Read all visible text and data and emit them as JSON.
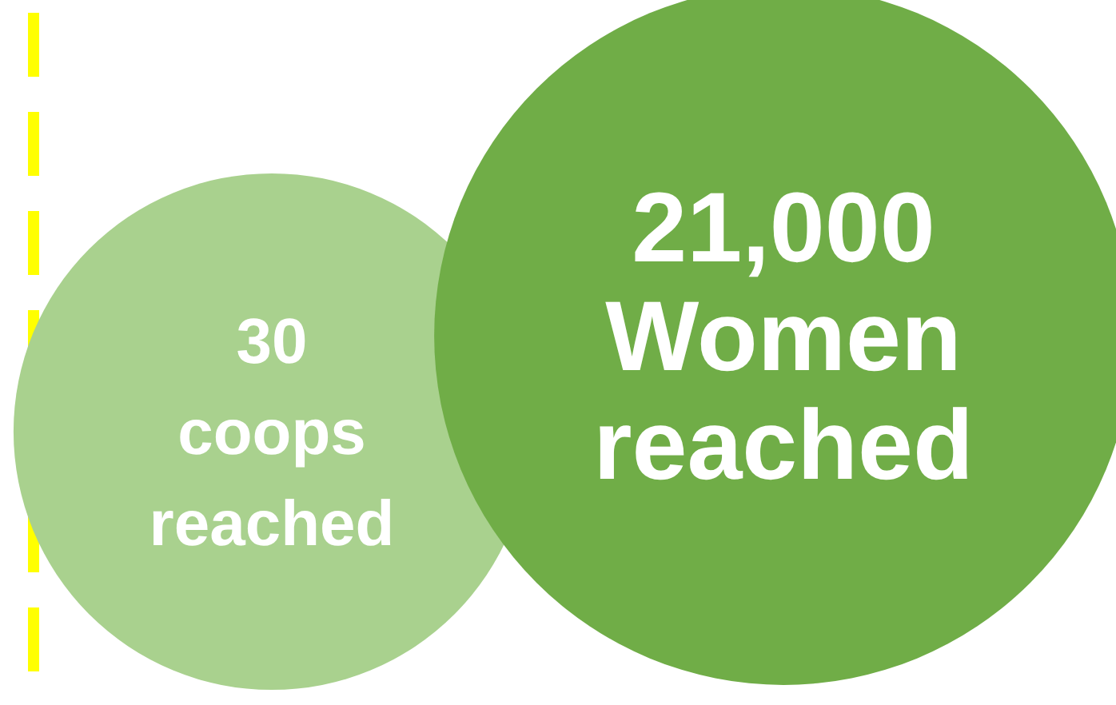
{
  "chart_data": {
    "type": "other",
    "categories": [
      "coops reached",
      "Women reached"
    ],
    "values": [
      30,
      21000
    ],
    "value_labels": [
      "30",
      "21,000"
    ],
    "colors": [
      "#a9d18e",
      "#70ad47"
    ]
  }
}
